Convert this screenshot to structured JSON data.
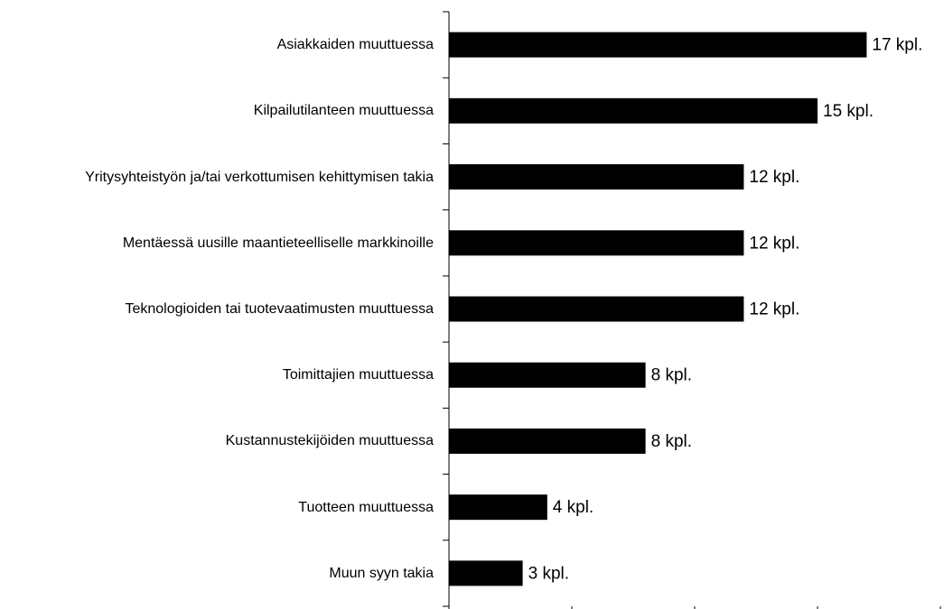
{
  "chart_data": {
    "type": "barh",
    "categories": [
      "Asiakkaiden muuttuessa",
      "Kilpailutilanteen muuttuessa",
      "Yritysyhteistyön ja/tai verkottumisen kehittymisen takia",
      "Mentäessä uusille maantieteelliselle markkinoille",
      "Teknologioiden tai tuotevaatimusten muuttuessa",
      "Toimittajien muuttuessa",
      "Kustannustekijöiden muuttuessa",
      "Tuotteen muuttuessa",
      "Muun syyn takia"
    ],
    "values": [
      17,
      15,
      12,
      12,
      12,
      8,
      8,
      4,
      3
    ],
    "value_labels": [
      "17 kpl.",
      "15 kpl.",
      "12 kpl.",
      "12 kpl.",
      "12 kpl.",
      "8 kpl.",
      "8 kpl.",
      "4 kpl.",
      "3 kpl."
    ],
    "color": "#000000",
    "xlim": [
      0,
      20
    ],
    "xticks": [
      0,
      5,
      10,
      15,
      20
    ]
  }
}
